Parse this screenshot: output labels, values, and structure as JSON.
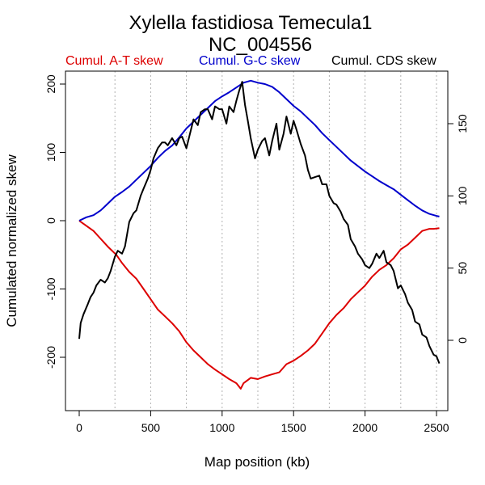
{
  "chart_data": {
    "type": "line",
    "title_line1": "Xylella fastidiosa Temecula1",
    "title_line2": "NC_004556",
    "xlabel": "Map position (kb)",
    "ylabel": "Cumulated normalized skew",
    "xlim": [
      0,
      2520
    ],
    "ylim_left": [
      -260,
      220
    ],
    "ylim_right": [
      -40,
      185
    ],
    "x_ticks": [
      0,
      500,
      1000,
      1500,
      2000,
      2500
    ],
    "x_tick_labels": [
      "0",
      "500",
      "1000",
      "1500",
      "2000",
      "2500"
    ],
    "y_left_ticks": [
      200,
      100,
      0,
      -100,
      -200
    ],
    "y_left_tick_labels": [
      "200",
      "100",
      "0",
      "-100",
      "-200"
    ],
    "y_right_ticks": [
      150,
      100,
      50,
      0
    ],
    "y_right_tick_labels": [
      "150",
      "100",
      "50",
      "0"
    ],
    "vertical_gridlines_kb": [
      250,
      500,
      750,
      1000,
      1250,
      1500,
      1750,
      2000,
      2250,
      2500
    ],
    "legend_placement": "top",
    "colors": {
      "at": "#dd0000",
      "gc": "#0000cc",
      "cds": "#000000",
      "grid": "#b0b0b0",
      "axis": "#000000"
    },
    "series": [
      {
        "name": "Cumul. A-T skew",
        "axis": "left",
        "x": [
          0,
          100,
          200,
          260,
          300,
          350,
          400,
          450,
          500,
          550,
          600,
          650,
          700,
          750,
          800,
          850,
          900,
          950,
          1000,
          1050,
          1100,
          1130,
          1150,
          1200,
          1250,
          1300,
          1350,
          1400,
          1450,
          1500,
          1550,
          1600,
          1650,
          1700,
          1750,
          1800,
          1850,
          1900,
          1950,
          2000,
          2050,
          2100,
          2150,
          2200,
          2250,
          2300,
          2350,
          2400,
          2450,
          2480,
          2520
        ],
        "values": [
          0,
          -15,
          -38,
          -50,
          -62,
          -75,
          -85,
          -100,
          -115,
          -130,
          -140,
          -150,
          -162,
          -178,
          -190,
          -200,
          -210,
          -218,
          -225,
          -232,
          -238,
          -246,
          -238,
          -230,
          -232,
          -228,
          -225,
          -222,
          -210,
          -205,
          -198,
          -190,
          -180,
          -165,
          -150,
          -138,
          -128,
          -115,
          -105,
          -95,
          -82,
          -72,
          -65,
          -55,
          -42,
          -35,
          -25,
          -15,
          -12,
          -12,
          -11
        ]
      },
      {
        "name": "Cumul. G-C skew",
        "axis": "left",
        "x": [
          0,
          50,
          100,
          150,
          200,
          250,
          300,
          350,
          400,
          450,
          500,
          550,
          600,
          650,
          700,
          750,
          800,
          850,
          900,
          950,
          1000,
          1050,
          1100,
          1150,
          1200,
          1250,
          1300,
          1350,
          1400,
          1450,
          1500,
          1550,
          1600,
          1650,
          1700,
          1750,
          1800,
          1850,
          1900,
          1950,
          2000,
          2050,
          2100,
          2150,
          2200,
          2250,
          2300,
          2350,
          2400,
          2450,
          2500,
          2520
        ],
        "values": [
          0,
          5,
          8,
          15,
          25,
          35,
          42,
          50,
          60,
          70,
          80,
          92,
          102,
          110,
          122,
          135,
          145,
          155,
          165,
          175,
          182,
          188,
          195,
          202,
          205,
          202,
          200,
          196,
          188,
          178,
          168,
          160,
          150,
          140,
          128,
          118,
          108,
          98,
          88,
          80,
          72,
          65,
          58,
          52,
          46,
          38,
          30,
          22,
          15,
          10,
          7,
          6
        ]
      },
      {
        "name": "Cumul. CDS skew",
        "axis": "right",
        "x": [
          0,
          10,
          30,
          60,
          80,
          100,
          120,
          150,
          180,
          200,
          220,
          250,
          270,
          300,
          320,
          350,
          380,
          400,
          430,
          450,
          480,
          500,
          520,
          550,
          580,
          600,
          620,
          650,
          680,
          700,
          720,
          750,
          780,
          800,
          830,
          850,
          880,
          900,
          930,
          950,
          980,
          1000,
          1030,
          1050,
          1080,
          1100,
          1120,
          1140,
          1160,
          1180,
          1200,
          1230,
          1250,
          1280,
          1300,
          1330,
          1350,
          1380,
          1400,
          1430,
          1450,
          1480,
          1500,
          1520,
          1550,
          1580,
          1600,
          1620,
          1650,
          1680,
          1700,
          1730,
          1750,
          1780,
          1800,
          1830,
          1850,
          1880,
          1900,
          1930,
          1950,
          1980,
          2000,
          2030,
          2050,
          2080,
          2100,
          2130,
          2150,
          2180,
          2200,
          2230,
          2250,
          2280,
          2300,
          2330,
          2350,
          2380,
          2400,
          2430,
          2450,
          2480,
          2500,
          2520
        ],
        "values": [
          1,
          12,
          18,
          25,
          30,
          33,
          38,
          42,
          40,
          43,
          48,
          58,
          62,
          60,
          65,
          82,
          88,
          90,
          100,
          105,
          112,
          118,
          126,
          133,
          137,
          137,
          135,
          140,
          135,
          140,
          141,
          133,
          145,
          153,
          149,
          158,
          160,
          160,
          153,
          162,
          160,
          160,
          150,
          162,
          158,
          166,
          173,
          179,
          163,
          152,
          140,
          126,
          132,
          138,
          140,
          128,
          138,
          150,
          132,
          143,
          155,
          143,
          152,
          146,
          136,
          128,
          118,
          112,
          113,
          114,
          108,
          108,
          100,
          95,
          94,
          89,
          84,
          80,
          70,
          65,
          60,
          56,
          52,
          50,
          53,
          60,
          57,
          62,
          54,
          52,
          48,
          36,
          38,
          32,
          26,
          21,
          13,
          11,
          4,
          2,
          -4,
          -10,
          -11,
          -16
        ]
      }
    ]
  }
}
